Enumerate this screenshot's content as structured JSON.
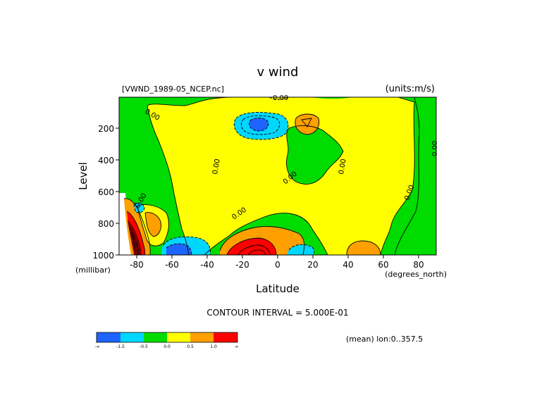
{
  "chart_data": {
    "type": "heatmap",
    "title": "v wind",
    "file_label": "[VWND_1989-05_NCEP.nc]",
    "units_label": "(units:m/s)",
    "xlabel": "Latitude",
    "x_unit_label": "(degrees_north)",
    "ylabel": "Level",
    "y_unit_label": "(millibar)",
    "x_range": [
      -90,
      90
    ],
    "y_range": [
      1000,
      10
    ],
    "x_ticks": [
      "-80",
      "-60",
      "-40",
      "-20",
      "0",
      "20",
      "40",
      "60",
      "80"
    ],
    "y_ticks": [
      "200",
      "400",
      "600",
      "800",
      "1000"
    ],
    "contour_interval_label": "CONTOUR INTERVAL = 5.000E-01",
    "mean_label": "(mean) lon:0..357.5",
    "contour_labels": [
      "0.00",
      "0.00",
      "0.00",
      "0.00",
      "0.00",
      "0.00",
      "0.00",
      "0.00",
      "0.00"
    ],
    "levels": [
      {
        "label": "-∞",
        "color": "#1e64ff"
      },
      {
        "label": "-1.5",
        "color": "#00d7ff"
      },
      {
        "label": "-0.5",
        "color": "#00dc00"
      },
      {
        "label": "0.0",
        "color": "#ffff00"
      },
      {
        "label": "0.5",
        "color": "#ffa000"
      },
      {
        "label": "1.0",
        "color": "#ff0000"
      },
      {
        "label": "∞",
        "color": "#ff0000"
      }
    ],
    "colorbar_colors": [
      "#1e64ff",
      "#00d7ff",
      "#00dc00",
      "#ffff00",
      "#ffa000",
      "#ff0000"
    ],
    "colors": {
      "negative_strong": "#1e64ff",
      "negative": "#00d7ff",
      "near_zero_negative": "#00dc00",
      "near_zero_positive": "#ffff00",
      "positive": "#ffa000",
      "positive_strong": "#ff0000",
      "extreme_positive": "#7a0000"
    }
  }
}
